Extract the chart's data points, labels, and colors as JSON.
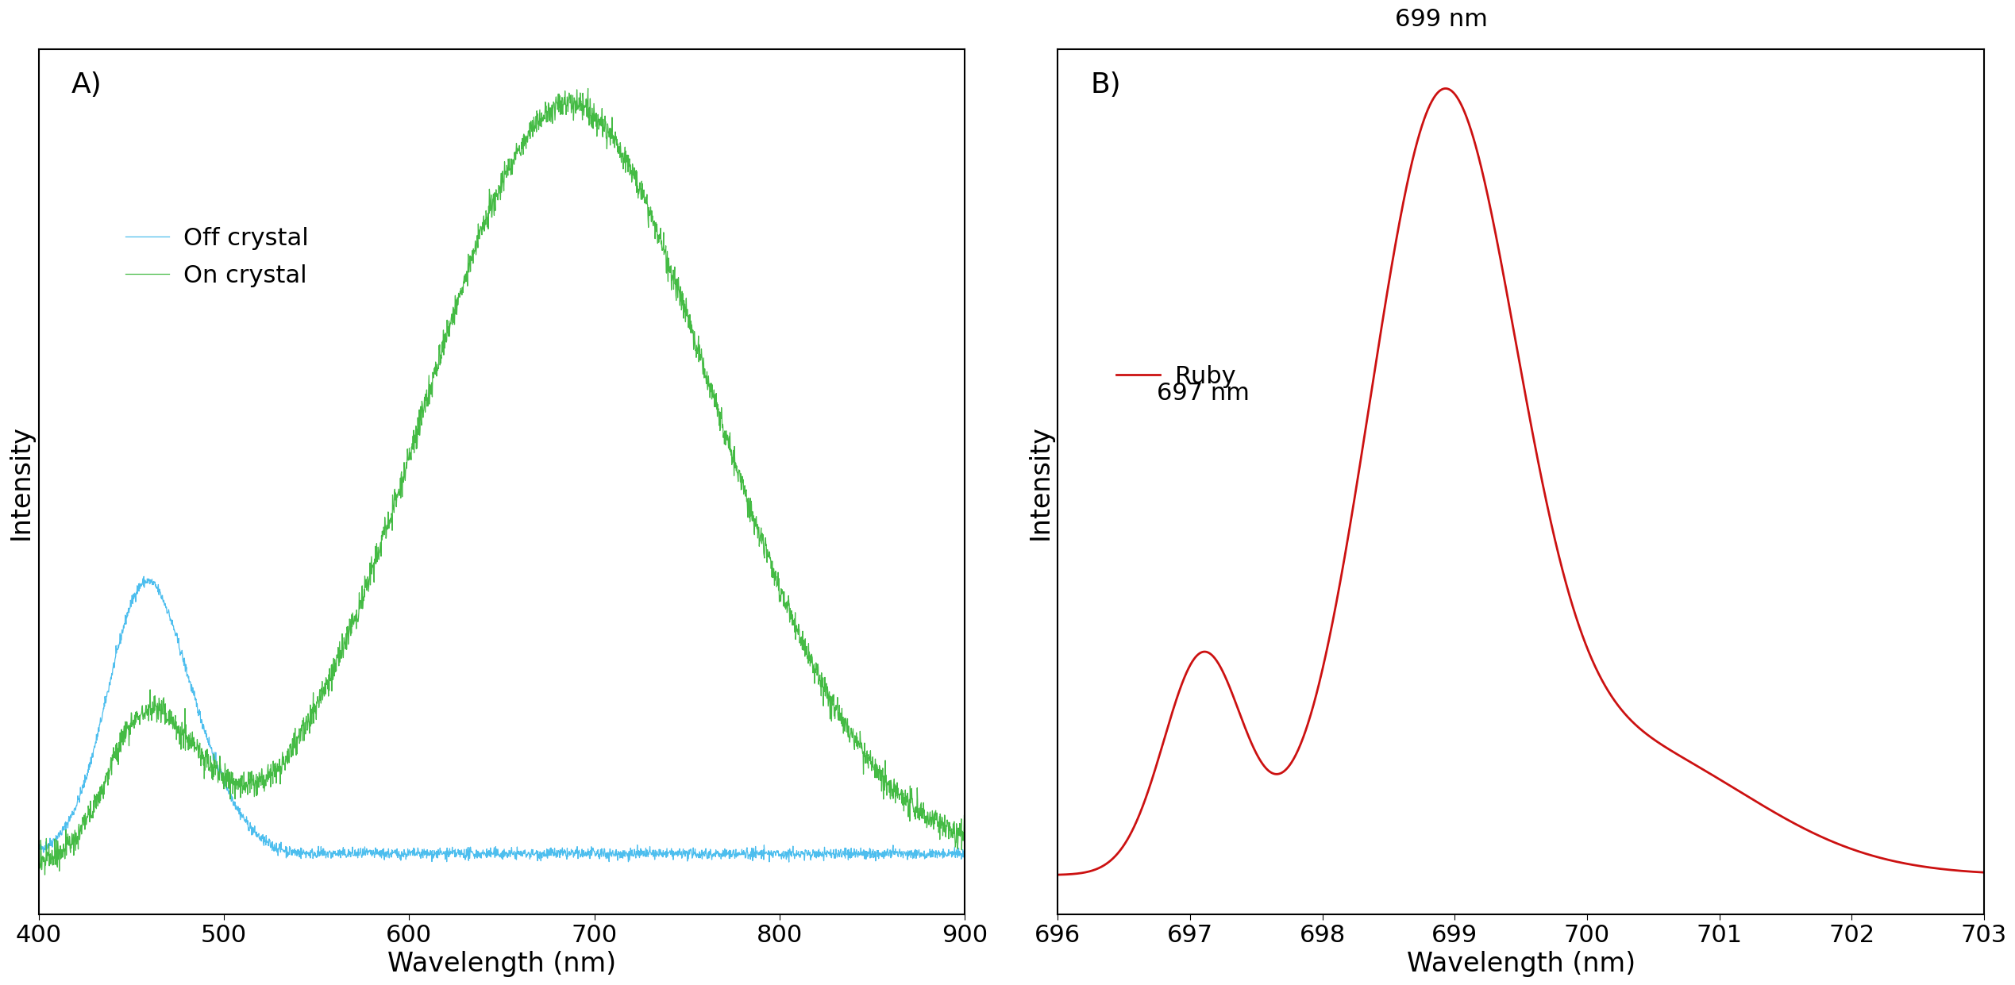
{
  "panel_A": {
    "title": "A)",
    "xlabel": "Wavelength (nm)",
    "ylabel": "Intensity",
    "xlim": [
      400,
      900
    ],
    "off_crystal_color": "#4DBEEE",
    "on_crystal_color": "#44BB44",
    "legend_labels": [
      "Off crystal",
      "On crystal"
    ],
    "xticks": [
      400,
      500,
      600,
      700,
      800,
      900
    ]
  },
  "panel_B": {
    "title": "B)",
    "xlabel": "Wavelength (nm)",
    "ylabel": "Intensity",
    "xlim": [
      696,
      703
    ],
    "xticks": [
      696,
      697,
      698,
      699,
      700,
      701,
      702,
      703
    ],
    "ruby_color": "#CC1111",
    "legend_label": "Ruby",
    "annotation_699": "699 nm",
    "annotation_697": "697 nm"
  },
  "background_color": "#ffffff",
  "axis_linewidth": 1.5,
  "font_size": 22,
  "label_font_size": 24,
  "title_font_size": 26
}
